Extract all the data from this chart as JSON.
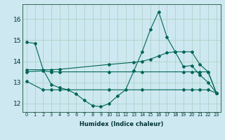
{
  "xlabel": "Humidex (Indice chaleur)",
  "bg_color": "#cde8f0",
  "grid_color": "#a8cfc0",
  "line_color": "#006655",
  "x_ticks": [
    0,
    1,
    2,
    3,
    4,
    5,
    6,
    7,
    8,
    9,
    10,
    11,
    12,
    13,
    14,
    15,
    16,
    17,
    18,
    19,
    20,
    21,
    22,
    23
  ],
  "y_ticks": [
    12,
    13,
    14,
    15,
    16
  ],
  "ylim": [
    11.6,
    16.7
  ],
  "xlim": [
    -0.5,
    23.5
  ],
  "series": [
    {
      "x": [
        0,
        1,
        2,
        3,
        4,
        5,
        6,
        7,
        8,
        9,
        10,
        11,
        12,
        13,
        14,
        15,
        16,
        17,
        18,
        19,
        20,
        21,
        22,
        23
      ],
      "y": [
        14.9,
        14.85,
        13.6,
        12.9,
        12.75,
        12.65,
        12.45,
        12.15,
        11.9,
        11.85,
        12.0,
        12.35,
        12.65,
        13.55,
        14.45,
        15.5,
        16.35,
        15.15,
        14.45,
        13.75,
        13.8,
        13.35,
        13.0,
        12.5
      ]
    },
    {
      "x": [
        0,
        2,
        3,
        4,
        10,
        13,
        14,
        15,
        16,
        17,
        18,
        19,
        20,
        21,
        22,
        23
      ],
      "y": [
        13.6,
        13.6,
        13.6,
        13.62,
        13.85,
        13.95,
        14.0,
        14.1,
        14.25,
        14.4,
        14.45,
        14.45,
        14.45,
        13.85,
        13.5,
        12.5
      ]
    },
    {
      "x": [
        0,
        2,
        3,
        4,
        10,
        14,
        19,
        20,
        21,
        22,
        23
      ],
      "y": [
        13.5,
        13.55,
        13.5,
        13.5,
        13.5,
        13.5,
        13.5,
        13.5,
        13.5,
        13.5,
        12.5
      ]
    },
    {
      "x": [
        0,
        2,
        3,
        4,
        10,
        14,
        19,
        20,
        21,
        22,
        23
      ],
      "y": [
        13.05,
        12.65,
        12.65,
        12.65,
        12.65,
        12.65,
        12.65,
        12.65,
        12.65,
        12.65,
        12.5
      ]
    }
  ]
}
